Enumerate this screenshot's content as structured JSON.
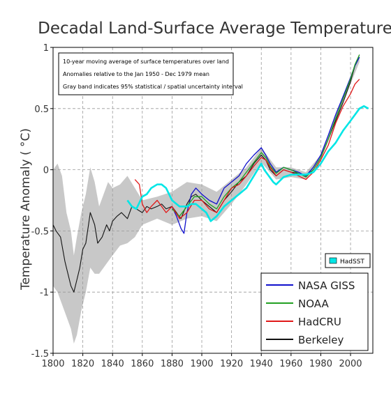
{
  "chart_data": {
    "type": "line",
    "title": "Decadal Land-Surface Average Temperature",
    "ylabel": "Temperature Anomaly ( °C)",
    "xlabel": "",
    "xlim": [
      1800,
      2015
    ],
    "ylim": [
      -1.5,
      1.0
    ],
    "xticks": [
      1800,
      1820,
      1840,
      1860,
      1880,
      1900,
      1920,
      1940,
      1960,
      1980,
      2000
    ],
    "yticks": [
      -1.5,
      -1,
      -0.5,
      0,
      0.5,
      1
    ],
    "ytick_labels": [
      "-1.5",
      "-1",
      "-0.5",
      "0",
      "0.5",
      "1"
    ],
    "grid": "dashed",
    "notes": [
      "10-year moving average of surface temperatures over land",
      "Anomalies relative to the Jan 1950 - Dec 1979 mean",
      "Gray band indicates 95% statistical / spatial uncertainty interval"
    ],
    "legend_position": "bottom-right",
    "colors": {
      "NASA GISS": "#1010cc",
      "NOAA": "#22a022",
      "HadCRU": "#e01818",
      "Berkeley": "#111111",
      "HadSST": "#00e6e6",
      "uncertainty": "#c8c8c8",
      "grid": "#999999"
    },
    "series": [
      {
        "name": "Berkeley",
        "x": [
          1800,
          1802,
          1805,
          1808,
          1810,
          1812,
          1814,
          1816,
          1818,
          1820,
          1822,
          1825,
          1828,
          1830,
          1833,
          1836,
          1838,
          1840,
          1843,
          1846,
          1850,
          1853,
          1856,
          1860,
          1863,
          1866,
          1870,
          1873,
          1876,
          1880,
          1883,
          1886,
          1890,
          1893,
          1896,
          1900,
          1905,
          1910,
          1915,
          1920,
          1925,
          1930,
          1935,
          1940,
          1943,
          1946,
          1950,
          1955,
          1960,
          1965,
          1970,
          1975,
          1980,
          1985,
          1990,
          1995,
          2000,
          2003,
          2006
        ],
        "y": [
          -0.45,
          -0.5,
          -0.55,
          -0.75,
          -0.85,
          -0.95,
          -1.0,
          -0.9,
          -0.8,
          -0.65,
          -0.6,
          -0.35,
          -0.45,
          -0.6,
          -0.55,
          -0.45,
          -0.5,
          -0.42,
          -0.38,
          -0.35,
          -0.4,
          -0.3,
          -0.32,
          -0.35,
          -0.3,
          -0.32,
          -0.3,
          -0.28,
          -0.32,
          -0.3,
          -0.35,
          -0.4,
          -0.28,
          -0.22,
          -0.2,
          -0.25,
          -0.3,
          -0.35,
          -0.25,
          -0.18,
          -0.1,
          -0.05,
          0.05,
          0.12,
          0.08,
          0.0,
          -0.05,
          0.0,
          -0.02,
          -0.03,
          -0.05,
          0.0,
          0.1,
          0.25,
          0.4,
          0.55,
          0.72,
          0.85,
          0.92
        ]
      },
      {
        "name": "NASA GISS",
        "x": [
          1880,
          1883,
          1886,
          1888,
          1890,
          1893,
          1896,
          1900,
          1905,
          1910,
          1915,
          1920,
          1925,
          1930,
          1935,
          1940,
          1943,
          1946,
          1950,
          1955,
          1960,
          1965,
          1970,
          1975,
          1980,
          1985,
          1990,
          1995,
          2000,
          2003,
          2006
        ],
        "y": [
          -0.3,
          -0.38,
          -0.48,
          -0.52,
          -0.35,
          -0.2,
          -0.15,
          -0.2,
          -0.25,
          -0.28,
          -0.15,
          -0.1,
          -0.05,
          0.05,
          0.12,
          0.18,
          0.12,
          0.05,
          -0.02,
          0.02,
          0.0,
          -0.02,
          -0.05,
          0.02,
          0.12,
          0.28,
          0.45,
          0.6,
          0.75,
          0.85,
          0.92
        ]
      },
      {
        "name": "NOAA",
        "x": [
          1880,
          1885,
          1890,
          1895,
          1900,
          1905,
          1910,
          1915,
          1920,
          1925,
          1930,
          1935,
          1940,
          1943,
          1946,
          1950,
          1955,
          1960,
          1965,
          1970,
          1975,
          1980,
          1985,
          1990,
          1995,
          2000,
          2003,
          2006
        ],
        "y": [
          -0.32,
          -0.38,
          -0.3,
          -0.22,
          -0.22,
          -0.28,
          -0.32,
          -0.22,
          -0.15,
          -0.1,
          -0.02,
          0.06,
          0.14,
          0.1,
          0.03,
          -0.03,
          0.02,
          0.0,
          -0.03,
          -0.06,
          0.0,
          0.1,
          0.25,
          0.42,
          0.58,
          0.74,
          0.86,
          0.94
        ]
      },
      {
        "name": "HadCRU",
        "x": [
          1855,
          1858,
          1860,
          1863,
          1866,
          1870,
          1873,
          1876,
          1880,
          1885,
          1890,
          1895,
          1900,
          1905,
          1910,
          1915,
          1920,
          1925,
          1930,
          1935,
          1940,
          1943,
          1946,
          1950,
          1955,
          1960,
          1965,
          1970,
          1975,
          1980,
          1985,
          1990,
          1995,
          2000,
          2003,
          2006
        ],
        "y": [
          -0.08,
          -0.12,
          -0.28,
          -0.35,
          -0.3,
          -0.25,
          -0.3,
          -0.35,
          -0.3,
          -0.4,
          -0.35,
          -0.25,
          -0.25,
          -0.32,
          -0.35,
          -0.25,
          -0.15,
          -0.12,
          -0.05,
          0.03,
          0.1,
          0.08,
          0.02,
          -0.05,
          0.0,
          -0.02,
          -0.05,
          -0.08,
          -0.02,
          0.08,
          0.2,
          0.38,
          0.52,
          0.62,
          0.7,
          0.74
        ]
      },
      {
        "name": "HadSST",
        "x": [
          1850,
          1853,
          1856,
          1860,
          1863,
          1866,
          1870,
          1873,
          1876,
          1880,
          1885,
          1890,
          1893,
          1896,
          1900,
          1903,
          1906,
          1910,
          1915,
          1920,
          1925,
          1930,
          1935,
          1940,
          1942,
          1945,
          1948,
          1950,
          1955,
          1960,
          1965,
          1970,
          1975,
          1980,
          1985,
          1990,
          1995,
          2000,
          2003,
          2006,
          2009,
          2012
        ],
        "y": [
          -0.25,
          -0.3,
          -0.32,
          -0.22,
          -0.2,
          -0.15,
          -0.12,
          -0.12,
          -0.15,
          -0.25,
          -0.3,
          -0.3,
          -0.28,
          -0.28,
          -0.32,
          -0.35,
          -0.42,
          -0.38,
          -0.3,
          -0.25,
          -0.2,
          -0.15,
          -0.05,
          0.05,
          0.0,
          -0.05,
          -0.1,
          -0.12,
          -0.06,
          -0.04,
          -0.04,
          -0.04,
          -0.02,
          0.05,
          0.15,
          0.22,
          0.32,
          0.4,
          0.45,
          0.5,
          0.52,
          0.5
        ]
      }
    ],
    "uncertainty_band": {
      "x": [
        1800,
        1803,
        1806,
        1809,
        1812,
        1814,
        1816,
        1819,
        1822,
        1825,
        1828,
        1831,
        1834,
        1837,
        1840,
        1845,
        1850,
        1855,
        1860,
        1870,
        1880,
        1890,
        1900,
        1910,
        1920,
        1930,
        1940,
        1950,
        1960,
        1970,
        1980,
        1990,
        2000,
        2006
      ],
      "upper": [
        0.0,
        0.05,
        -0.05,
        -0.35,
        -0.5,
        -0.7,
        -0.55,
        -0.35,
        -0.2,
        0.02,
        -0.1,
        -0.3,
        -0.2,
        -0.1,
        -0.15,
        -0.12,
        -0.05,
        -0.15,
        -0.25,
        -0.22,
        -0.18,
        -0.1,
        -0.12,
        -0.18,
        -0.08,
        0.02,
        0.18,
        0.02,
        0.02,
        -0.02,
        0.12,
        0.44,
        0.77,
        0.95
      ],
      "lower": [
        -0.95,
        -1.0,
        -1.1,
        -1.2,
        -1.3,
        -1.42,
        -1.35,
        -1.15,
        -1.0,
        -0.8,
        -0.85,
        -0.85,
        -0.8,
        -0.75,
        -0.7,
        -0.62,
        -0.6,
        -0.55,
        -0.45,
        -0.4,
        -0.45,
        -0.4,
        -0.38,
        -0.42,
        -0.28,
        -0.12,
        0.06,
        -0.08,
        -0.06,
        -0.08,
        0.08,
        0.38,
        0.7,
        0.88
      ]
    }
  },
  "legend": {
    "hadsst_label": "HadSST",
    "entries": [
      {
        "name": "NASA GISS"
      },
      {
        "name": "NOAA"
      },
      {
        "name": "HadCRU"
      },
      {
        "name": "Berkeley"
      }
    ]
  }
}
